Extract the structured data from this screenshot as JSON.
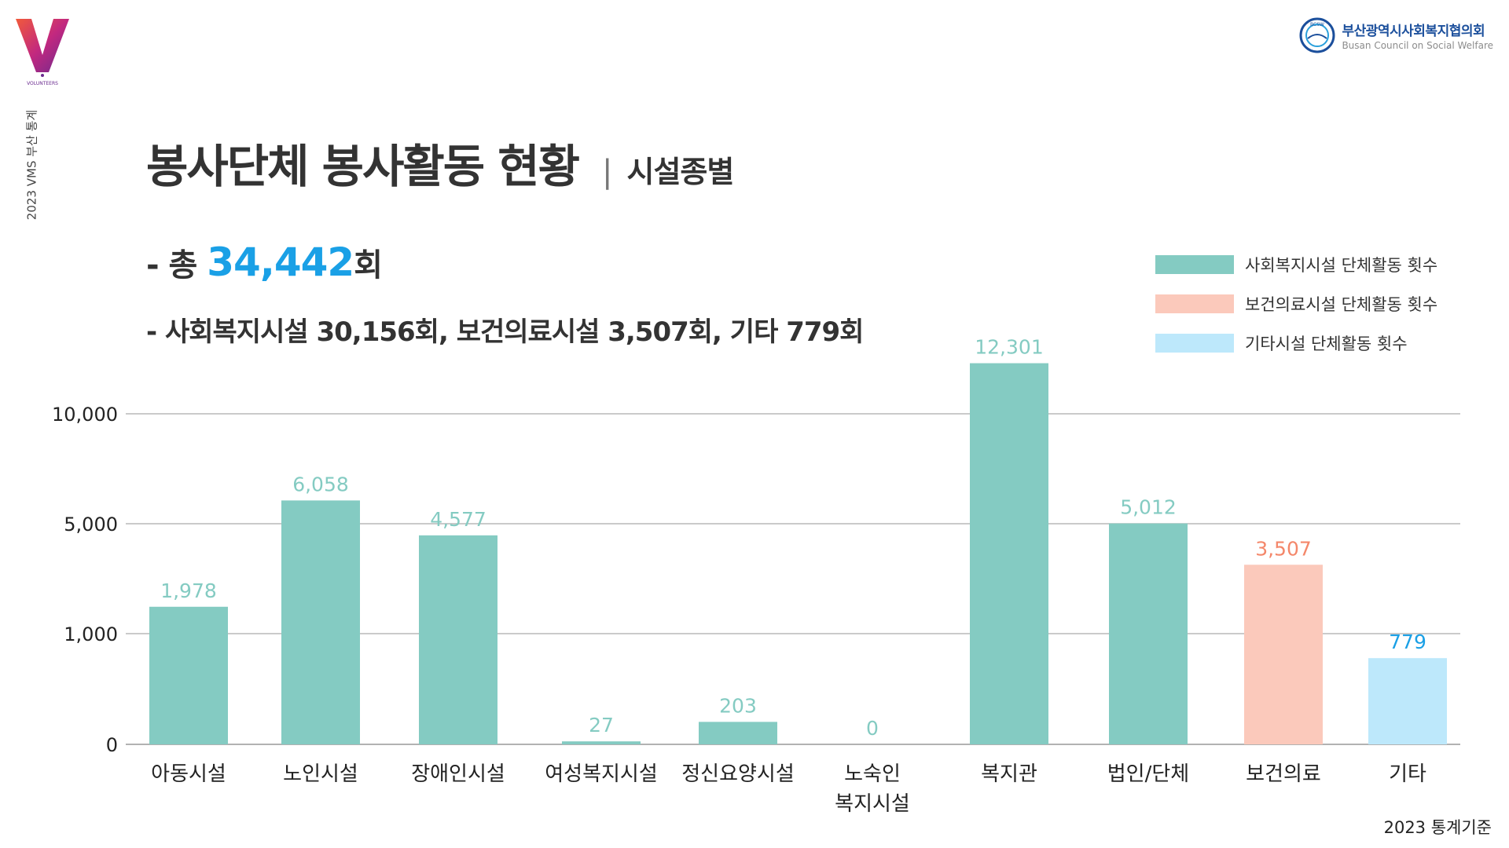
{
  "brand": {
    "side_label": "2023 VMS 부산 통계",
    "logo_caption": "VOLUNTEERS"
  },
  "org": {
    "name_kr": "부산광역시사회복지협의회",
    "name_en": "Busan Council on Social Welfare",
    "emblem_text": "BCSW"
  },
  "header": {
    "title": "봉사단체 봉사활동 현황",
    "separator": "|",
    "subtitle": "시설종별"
  },
  "summary": {
    "total_prefix": "- 총 ",
    "total_value": "34,442",
    "total_suffix": "회",
    "breakdown": "- 사회복지시설 30,156회, 보건의료시설 3,507회, 기타 779회"
  },
  "legend": [
    {
      "label": "사회복지시설 단체활동 횟수",
      "color": "#84cbc2"
    },
    {
      "label": "보건의료시설 단체활동 횟수",
      "color": "#fbc9bb"
    },
    {
      "label": "기타시설 단체활동 횟수",
      "color": "#bde8fb"
    }
  ],
  "chart_data": {
    "type": "bar",
    "categories": [
      "아동시설",
      "노인시설",
      "장애인시설",
      "여성복지시설",
      "정신요양시설",
      "노숙인\n복지시설",
      "복지관",
      "법인/단체",
      "보건의료",
      "기타"
    ],
    "values": [
      1978,
      6058,
      4577,
      27,
      203,
      0,
      12301,
      5012,
      3507,
      779
    ],
    "value_labels": [
      "1,978",
      "6,058",
      "4,577",
      "27",
      "203",
      "0",
      "12,301",
      "5,012",
      "3,507",
      "779"
    ],
    "bar_groups": [
      "social",
      "social",
      "social",
      "social",
      "social",
      "social",
      "social",
      "social",
      "medical",
      "other"
    ],
    "y_ticks": [
      {
        "value": 0,
        "label": "0"
      },
      {
        "value": 1000,
        "label": "1,000"
      },
      {
        "value": 5000,
        "label": "5,000"
      },
      {
        "value": 10000,
        "label": "10,000"
      }
    ],
    "y_scale": "piecewise (non-linear axis breaks at 0, 1,000, 5,000, 10,000)",
    "grid": true,
    "legend_position": "top-right",
    "colors": {
      "social": "#84cbc2",
      "medical": "#fbc9bb",
      "other": "#bde8fb",
      "social_label": "#84cbc2",
      "medical_label": "#f4876a",
      "other_label": "#1aa0e6"
    }
  },
  "footnote": "2023 통계기준"
}
